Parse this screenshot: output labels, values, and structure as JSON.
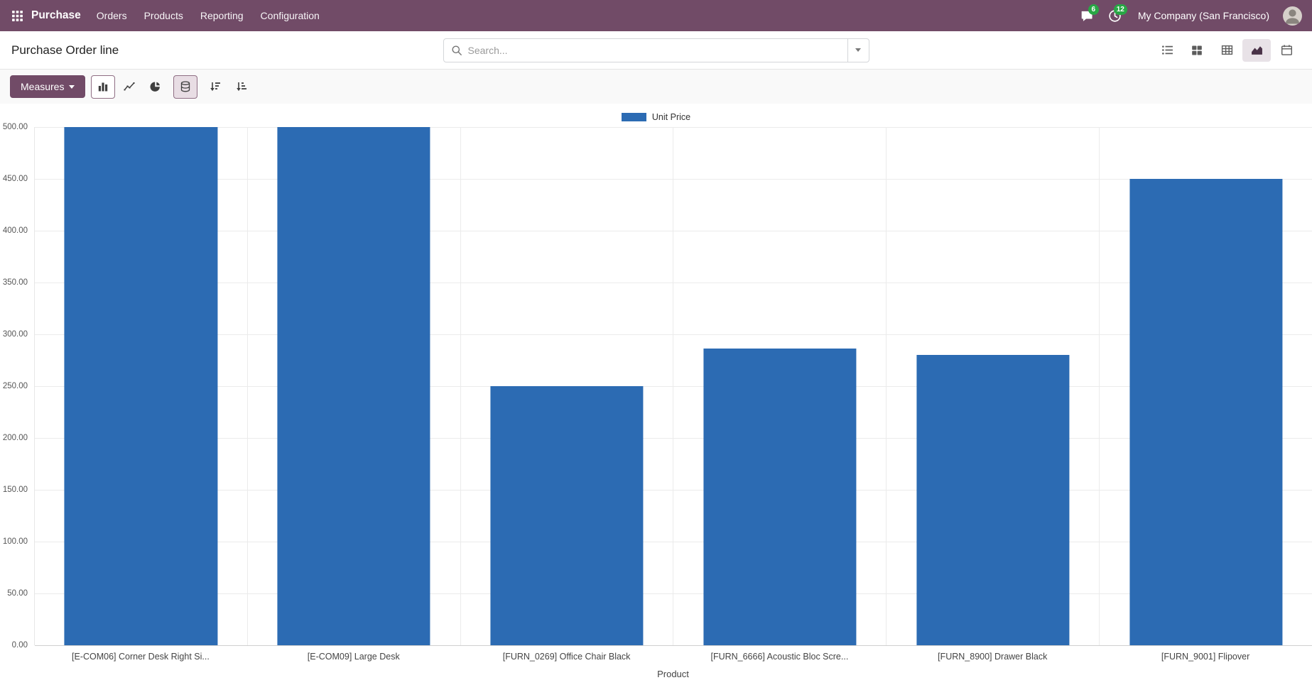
{
  "navbar": {
    "app_name": "Purchase",
    "menus": [
      "Orders",
      "Products",
      "Reporting",
      "Configuration"
    ],
    "messages_count": "6",
    "activities_count": "12",
    "company": "My Company (San Francisco)"
  },
  "control_panel": {
    "title": "Purchase Order line",
    "search_placeholder": "Search..."
  },
  "toolbar": {
    "measures_label": "Measures"
  },
  "view_switcher": {
    "views": [
      "list",
      "kanban",
      "pivot",
      "graph",
      "calendar"
    ],
    "active": "graph"
  },
  "chart_data": {
    "type": "bar",
    "title": "",
    "legend_position": "top",
    "categories": [
      "[E-COM06] Corner Desk Right Si...",
      "[E-COM09] Large Desk",
      "[FURN_0269] Office Chair Black",
      "[FURN_6666] Acoustic Bloc Scre...",
      "[FURN_8900] Drawer Black",
      "[FURN_9001] Flipover"
    ],
    "series": [
      {
        "name": "Unit Price",
        "values": [
          500,
          500,
          250,
          286,
          280,
          450
        ]
      }
    ],
    "xlabel": "Product",
    "ylabel": "",
    "ylim": [
      0,
      500
    ],
    "yticks": [
      "500.00",
      "450.00",
      "400.00",
      "350.00",
      "300.00",
      "250.00",
      "200.00",
      "150.00",
      "100.00",
      "50.00",
      "0.00"
    ],
    "grid": true,
    "bar_color": "#2c6bb3"
  },
  "colors": {
    "accent": "#714B67",
    "bar": "#2c6bb3",
    "badge_green": "#28a745"
  },
  "icons": {
    "apps-grid-icon": "3x3-grid",
    "chat-icon": "speech-bubble",
    "clock-icon": "clock",
    "search-icon": "magnifier",
    "caret-down-icon": "triangle-down",
    "view-list-icon": "list",
    "view-kanban-icon": "kanban-grid",
    "view-pivot-icon": "table-grid",
    "view-graph-icon": "area-chart",
    "view-calendar-icon": "calendar",
    "bar-chart-icon": "vertical-bars",
    "line-chart-icon": "zigzag-line",
    "pie-chart-icon": "pie",
    "stacked-icon": "database-stack",
    "sort-desc-icon": "sort-amount-desc",
    "sort-asc-icon": "sort-amount-asc",
    "avatar-icon": "user-silhouette"
  }
}
